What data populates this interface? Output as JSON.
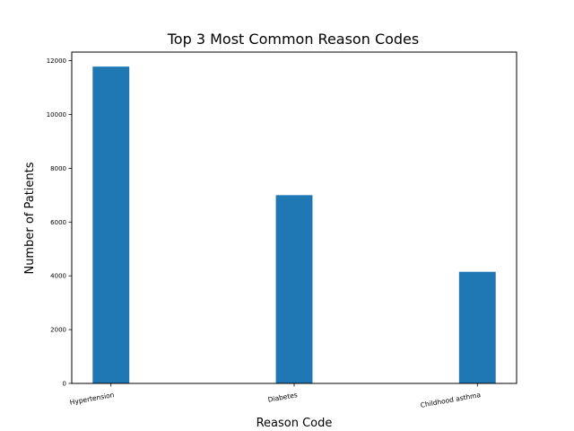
{
  "chart_data": {
    "type": "bar",
    "title": "Top 3 Most Common Reason Codes",
    "xlabel": "Reason Code",
    "ylabel": "Number of Patients",
    "categories": [
      "Hypertension",
      "Diabetes",
      "Childhood asthma"
    ],
    "values": [
      11780,
      7000,
      4150
    ],
    "ylim": [
      0,
      12000
    ],
    "yticks": [
      0,
      2000,
      4000,
      6000,
      8000,
      10000,
      12000
    ],
    "ytick_labels": [
      "0",
      "2000",
      "4000",
      "6000",
      "8000",
      "10000",
      "12000"
    ],
    "bar_color": "#1f77b4",
    "grid": false,
    "legend": "none"
  }
}
